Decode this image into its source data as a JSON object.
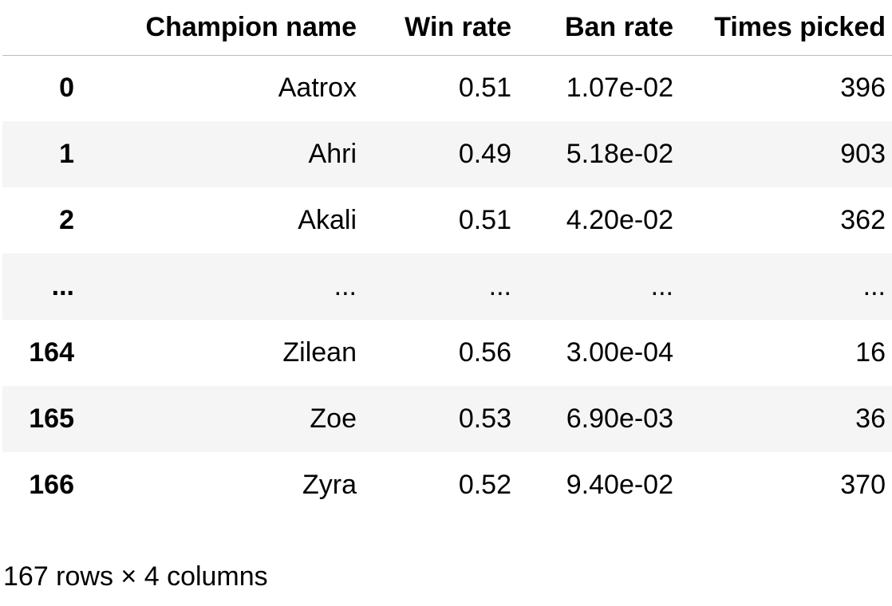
{
  "table": {
    "columns": {
      "index": "",
      "champion_name": "Champion name",
      "win_rate": "Win rate",
      "ban_rate": "Ban rate",
      "times_picked": "Times picked"
    },
    "rows": [
      {
        "index": "0",
        "champion_name": "Aatrox",
        "win_rate": "0.51",
        "ban_rate": "1.07e-02",
        "times_picked": "396"
      },
      {
        "index": "1",
        "champion_name": "Ahri",
        "win_rate": "0.49",
        "ban_rate": "5.18e-02",
        "times_picked": "903"
      },
      {
        "index": "2",
        "champion_name": "Akali",
        "win_rate": "0.51",
        "ban_rate": "4.20e-02",
        "times_picked": "362"
      },
      {
        "index": "...",
        "champion_name": "...",
        "win_rate": "...",
        "ban_rate": "...",
        "times_picked": "..."
      },
      {
        "index": "164",
        "champion_name": "Zilean",
        "win_rate": "0.56",
        "ban_rate": "3.00e-04",
        "times_picked": "16"
      },
      {
        "index": "165",
        "champion_name": "Zoe",
        "win_rate": "0.53",
        "ban_rate": "6.90e-03",
        "times_picked": "36"
      },
      {
        "index": "166",
        "champion_name": "Zyra",
        "win_rate": "0.52",
        "ban_rate": "9.40e-02",
        "times_picked": "370"
      }
    ]
  },
  "caption": "167 rows × 4 columns"
}
